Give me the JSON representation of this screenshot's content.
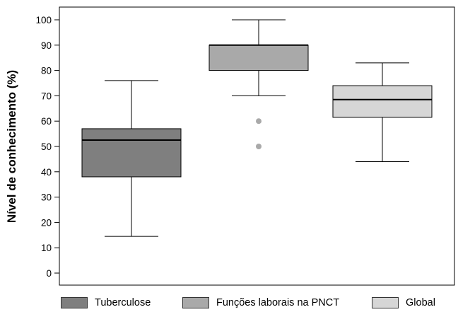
{
  "chart_data": {
    "type": "boxplot",
    "ylabel": "Nível de conhecimento (%)",
    "ylim": [
      0,
      100
    ],
    "yticks": [
      "0",
      "10",
      "20",
      "30",
      "40",
      "50",
      "60",
      "70",
      "80",
      "90",
      "100"
    ],
    "grid": false,
    "legend_position": "bottom",
    "series": [
      {
        "name": "Tuberculose",
        "color": "#7f7f7f",
        "whisker_low": 14.5,
        "q1": 38,
        "median": 52.5,
        "q3": 57,
        "whisker_high": 76,
        "outliers": []
      },
      {
        "name": "Funções laborais na PNCT",
        "color": "#a9a9a9",
        "whisker_low": 70,
        "q1": 80,
        "median": 90,
        "q3": 90,
        "whisker_high": 100,
        "outliers": [
          60,
          50
        ]
      },
      {
        "name": "Global",
        "color": "#d6d6d6",
        "whisker_low": 44,
        "q1": 61.5,
        "median": 68.5,
        "q3": 74,
        "whisker_high": 83,
        "outliers": []
      }
    ]
  }
}
